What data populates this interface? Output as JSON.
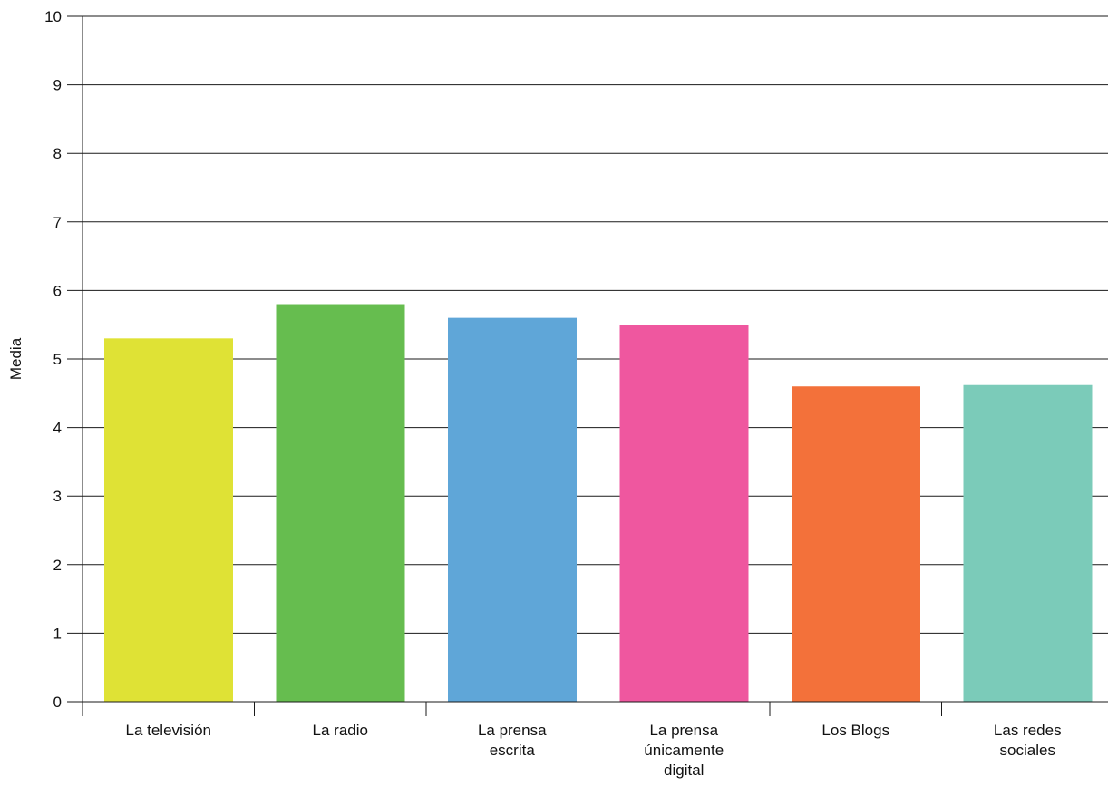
{
  "chart_data": {
    "type": "bar",
    "categories": [
      [
        "La televisión"
      ],
      [
        "La radio"
      ],
      [
        "La prensa",
        "escrita"
      ],
      [
        "La prensa",
        "únicamente",
        "digital"
      ],
      [
        "Los Blogs"
      ],
      [
        "Las redes",
        "sociales"
      ]
    ],
    "values": [
      5.3,
      5.8,
      5.6,
      5.5,
      4.6,
      4.62
    ],
    "colors": [
      "#dfe235",
      "#66bd4f",
      "#5fa6d8",
      "#ef579f",
      "#f3713a",
      "#7bcbb9"
    ],
    "title": "",
    "xlabel": "",
    "ylabel": "Media",
    "ylim": [
      0,
      10
    ],
    "yticks": [
      0,
      1,
      2,
      3,
      4,
      5,
      6,
      7,
      8,
      9,
      10
    ],
    "grid": true,
    "legend": "none"
  }
}
